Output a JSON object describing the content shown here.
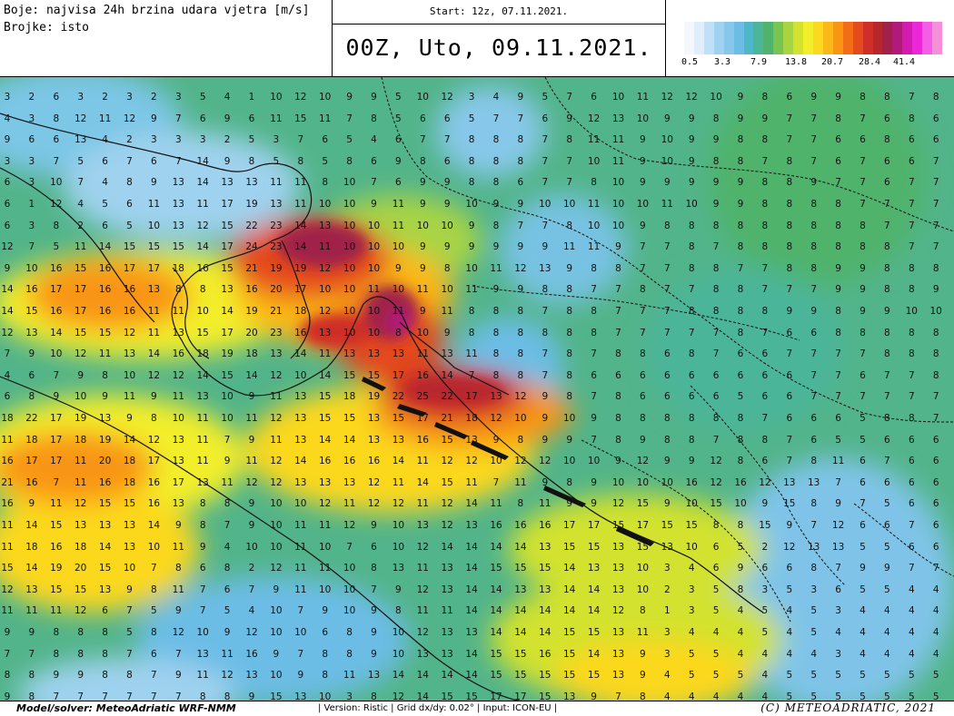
{
  "header": {
    "legend_lines": [
      "Boje: najvisa 24h brzina udara vjetra [m/s]",
      "Brojke: isto"
    ],
    "start": "Start: 12z, 07.11.2021.",
    "valid_time": "00Z, Uto, 09.11.2021."
  },
  "legend": {
    "colors": [
      "#f4f8fc",
      "#dfeefa",
      "#bfe0f6",
      "#9fd2f0",
      "#86c8ec",
      "#6cbde6",
      "#4fb8c8",
      "#4cb59a",
      "#4fb36c",
      "#79c350",
      "#a8d444",
      "#d2e22f",
      "#f3ee2a",
      "#fcd81f",
      "#fcb818",
      "#f99513",
      "#f26d16",
      "#e44a1c",
      "#cf2f28",
      "#b8262d",
      "#a0214a",
      "#b21a79",
      "#d41ab0",
      "#ec27d8",
      "#f45ee6",
      "#f48fd8"
    ],
    "ticks": [
      "0.5",
      "3.3",
      "7.9",
      "13.8",
      "20.7",
      "28.4",
      "41.4"
    ]
  },
  "map": {
    "grid_values": [
      [
        3,
        2,
        6,
        3,
        2,
        3,
        2,
        3,
        5,
        4,
        1,
        10,
        12,
        10,
        9,
        9,
        5,
        10,
        12,
        3,
        4,
        9,
        5,
        7,
        6,
        10,
        11,
        12,
        12,
        10,
        9,
        8,
        6,
        9,
        9,
        8,
        8,
        7,
        8
      ],
      [
        4,
        3,
        8,
        12,
        11,
        12,
        9,
        7,
        6,
        9,
        6,
        11,
        15,
        11,
        7,
        8,
        5,
        6,
        6,
        5,
        7,
        7,
        6,
        9,
        12,
        13,
        10,
        9,
        9,
        8,
        9,
        9,
        7,
        7,
        8,
        7,
        6,
        8,
        6
      ],
      [
        9,
        6,
        6,
        13,
        4,
        2,
        3,
        3,
        3,
        2,
        5,
        3,
        7,
        6,
        5,
        4,
        6,
        7,
        7,
        8,
        8,
        8,
        7,
        8,
        11,
        11,
        9,
        10,
        9,
        9,
        8,
        8,
        7,
        7,
        6,
        6,
        8,
        6,
        6
      ],
      [
        3,
        3,
        7,
        5,
        6,
        7,
        6,
        7,
        14,
        9,
        8,
        5,
        8,
        5,
        8,
        6,
        9,
        8,
        6,
        8,
        8,
        8,
        7,
        7,
        10,
        11,
        9,
        10,
        9,
        8,
        8,
        7,
        8,
        7,
        6,
        7,
        6,
        6,
        7
      ],
      [
        6,
        3,
        10,
        7,
        4,
        8,
        9,
        13,
        14,
        13,
        13,
        11,
        11,
        8,
        10,
        7,
        6,
        9,
        9,
        8,
        8,
        6,
        7,
        7,
        8,
        10,
        9,
        9,
        9,
        9,
        9,
        8,
        8,
        9,
        7,
        7,
        6,
        7,
        7
      ],
      [
        6,
        1,
        12,
        4,
        5,
        6,
        11,
        13,
        11,
        17,
        19,
        13,
        11,
        10,
        10,
        9,
        11,
        9,
        9,
        10,
        9,
        9,
        10,
        10,
        11,
        10,
        10,
        11,
        10,
        9,
        9,
        8,
        8,
        8,
        8,
        7,
        7,
        7,
        7
      ],
      [
        6,
        3,
        8,
        2,
        6,
        5,
        10,
        13,
        12,
        15,
        22,
        23,
        14,
        13,
        10,
        10,
        11,
        10,
        10,
        9,
        8,
        7,
        7,
        8,
        10,
        10,
        9,
        8,
        8,
        8,
        8,
        8,
        8,
        8,
        8,
        8,
        7,
        7,
        7
      ],
      [
        12,
        7,
        5,
        11,
        14,
        15,
        15,
        15,
        14,
        17,
        24,
        23,
        14,
        11,
        10,
        10,
        10,
        9,
        9,
        9,
        9,
        9,
        9,
        11,
        11,
        9,
        7,
        7,
        8,
        7,
        8,
        8,
        8,
        8,
        8,
        8,
        8,
        7,
        7
      ],
      [
        9,
        10,
        16,
        15,
        16,
        17,
        17,
        18,
        16,
        15,
        21,
        19,
        19,
        12,
        10,
        10,
        9,
        9,
        8,
        10,
        11,
        12,
        13,
        9,
        8,
        8,
        7,
        7,
        8,
        8,
        7,
        7,
        8,
        8,
        9,
        9,
        8,
        8,
        8
      ],
      [
        14,
        16,
        17,
        17,
        16,
        16,
        13,
        8,
        8,
        13,
        16,
        20,
        17,
        10,
        10,
        11,
        10,
        11,
        10,
        11,
        9,
        9,
        8,
        8,
        7,
        7,
        8,
        7,
        7,
        8,
        8,
        7,
        7,
        7,
        9,
        9,
        8,
        8,
        9
      ],
      [
        14,
        15,
        16,
        17,
        16,
        16,
        11,
        11,
        10,
        14,
        19,
        21,
        18,
        12,
        10,
        10,
        11,
        9,
        11,
        8,
        8,
        8,
        7,
        8,
        8,
        7,
        7,
        7,
        8,
        8,
        8,
        8,
        9,
        9,
        8,
        9,
        9,
        10,
        10
      ],
      [
        12,
        13,
        14,
        15,
        15,
        12,
        11,
        13,
        15,
        17,
        20,
        23,
        16,
        13,
        10,
        10,
        8,
        10,
        9,
        8,
        8,
        8,
        8,
        8,
        8,
        7,
        7,
        7,
        7,
        7,
        8,
        7,
        6,
        6,
        8,
        8,
        8,
        8,
        8
      ],
      [
        7,
        9,
        10,
        12,
        11,
        13,
        14,
        16,
        18,
        19,
        18,
        13,
        14,
        11,
        13,
        13,
        13,
        11,
        13,
        11,
        8,
        8,
        7,
        8,
        7,
        8,
        8,
        6,
        8,
        7,
        6,
        6,
        7,
        7,
        7,
        7,
        8,
        8,
        8
      ],
      [
        4,
        6,
        7,
        9,
        8,
        10,
        12,
        12,
        14,
        15,
        14,
        12,
        10,
        14,
        15,
        15,
        17,
        16,
        14,
        7,
        8,
        8,
        7,
        8,
        6,
        6,
        6,
        6,
        6,
        6,
        6,
        6,
        6,
        7,
        7,
        6,
        7,
        7,
        8
      ],
      [
        6,
        8,
        9,
        10,
        9,
        11,
        9,
        11,
        13,
        10,
        9,
        11,
        13,
        15,
        18,
        19,
        22,
        25,
        22,
        17,
        13,
        12,
        9,
        8,
        7,
        8,
        6,
        6,
        6,
        6,
        5,
        6,
        6,
        7,
        7,
        7,
        7,
        7,
        7
      ],
      [
        18,
        22,
        17,
        19,
        13,
        9,
        8,
        10,
        11,
        10,
        11,
        12,
        13,
        15,
        15,
        13,
        15,
        17,
        21,
        18,
        12,
        10,
        9,
        10,
        9,
        8,
        8,
        8,
        8,
        8,
        8,
        7,
        6,
        6,
        6,
        5,
        8,
        8,
        7
      ],
      [
        11,
        18,
        17,
        18,
        19,
        14,
        12,
        13,
        11,
        7,
        9,
        11,
        13,
        14,
        14,
        13,
        13,
        16,
        15,
        13,
        9,
        8,
        9,
        9,
        7,
        8,
        9,
        8,
        8,
        7,
        8,
        8,
        7,
        6,
        5,
        5,
        6,
        6,
        6
      ],
      [
        16,
        17,
        17,
        11,
        20,
        18,
        17,
        13,
        11,
        9,
        11,
        12,
        14,
        16,
        16,
        16,
        14,
        11,
        12,
        12,
        10,
        12,
        12,
        10,
        10,
        9,
        12,
        9,
        9,
        12,
        8,
        6,
        7,
        8,
        11,
        6,
        7,
        6,
        6
      ],
      [
        21,
        16,
        7,
        11,
        16,
        18,
        16,
        17,
        13,
        11,
        12,
        12,
        13,
        13,
        13,
        12,
        11,
        14,
        15,
        11,
        7,
        11,
        9,
        8,
        9,
        10,
        10,
        10,
        16,
        12,
        16,
        12,
        13,
        13,
        7,
        6,
        6,
        6,
        6
      ],
      [
        16,
        9,
        11,
        12,
        15,
        15,
        16,
        13,
        8,
        8,
        9,
        10,
        10,
        12,
        11,
        12,
        12,
        11,
        12,
        14,
        11,
        8,
        11,
        9,
        9,
        12,
        15,
        9,
        10,
        15,
        10,
        9,
        15,
        8,
        9,
        7,
        5,
        6,
        6
      ],
      [
        11,
        14,
        15,
        13,
        13,
        13,
        14,
        9,
        8,
        7,
        9,
        10,
        11,
        11,
        12,
        9,
        10,
        13,
        12,
        13,
        16,
        16,
        16,
        17,
        17,
        15,
        17,
        15,
        15,
        8,
        8,
        15,
        9,
        7,
        12,
        6,
        6,
        7,
        6
      ],
      [
        11,
        18,
        16,
        18,
        14,
        13,
        10,
        11,
        9,
        4,
        10,
        10,
        11,
        10,
        7,
        6,
        10,
        12,
        14,
        14,
        14,
        14,
        13,
        15,
        15,
        13,
        15,
        13,
        10,
        6,
        5,
        2,
        12,
        13,
        13,
        5,
        5,
        6,
        6
      ],
      [
        15,
        14,
        19,
        20,
        15,
        10,
        7,
        8,
        6,
        8,
        2,
        12,
        11,
        11,
        10,
        8,
        13,
        11,
        13,
        14,
        15,
        15,
        15,
        14,
        13,
        13,
        10,
        3,
        4,
        6,
        9,
        6,
        6,
        8,
        7,
        9,
        9,
        7,
        7
      ],
      [
        12,
        13,
        15,
        15,
        13,
        9,
        8,
        11,
        7,
        6,
        7,
        9,
        11,
        10,
        10,
        7,
        9,
        12,
        13,
        14,
        14,
        13,
        13,
        14,
        14,
        13,
        10,
        2,
        3,
        5,
        8,
        3,
        5,
        3,
        6,
        5,
        5,
        4,
        4
      ],
      [
        11,
        11,
        11,
        12,
        6,
        7,
        5,
        9,
        7,
        5,
        4,
        10,
        7,
        9,
        10,
        9,
        8,
        11,
        11,
        14,
        14,
        14,
        14,
        14,
        14,
        12,
        8,
        1,
        3,
        5,
        4,
        5,
        4,
        5,
        3,
        4,
        4,
        4,
        4
      ],
      [
        9,
        9,
        8,
        8,
        8,
        5,
        8,
        12,
        10,
        9,
        12,
        10,
        10,
        6,
        8,
        9,
        10,
        12,
        13,
        13,
        14,
        14,
        14,
        15,
        15,
        13,
        11,
        3,
        4,
        4,
        4,
        5,
        4,
        5,
        4,
        4,
        4,
        4,
        4
      ],
      [
        7,
        7,
        8,
        8,
        8,
        7,
        6,
        7,
        13,
        11,
        16,
        9,
        7,
        8,
        8,
        9,
        10,
        13,
        13,
        14,
        15,
        15,
        16,
        15,
        14,
        13,
        9,
        3,
        5,
        5,
        4,
        4,
        4,
        4,
        3,
        4,
        4,
        4,
        4
      ],
      [
        8,
        8,
        9,
        9,
        8,
        8,
        7,
        9,
        11,
        12,
        13,
        10,
        9,
        8,
        11,
        13,
        14,
        14,
        14,
        14,
        15,
        15,
        15,
        15,
        15,
        13,
        9,
        4,
        5,
        5,
        5,
        4,
        5,
        5,
        5,
        5,
        5,
        5,
        5
      ],
      [
        9,
        8,
        7,
        7,
        7,
        7,
        7,
        7,
        8,
        8,
        9,
        15,
        13,
        10,
        3,
        8,
        12,
        14,
        15,
        15,
        17,
        17,
        15,
        13,
        9,
        7,
        8,
        4,
        4,
        4,
        4,
        4,
        5,
        5,
        5,
        5,
        5,
        5,
        5
      ]
    ]
  },
  "footer": {
    "model": "Model/solver: MeteoAdriatic WRF-NMM",
    "meta": "| Version: Ristic | Grid dx/dy: 0.02° | Input: ICON-EU |",
    "copyright": "(C) METEOADRIATIC, 2021"
  }
}
